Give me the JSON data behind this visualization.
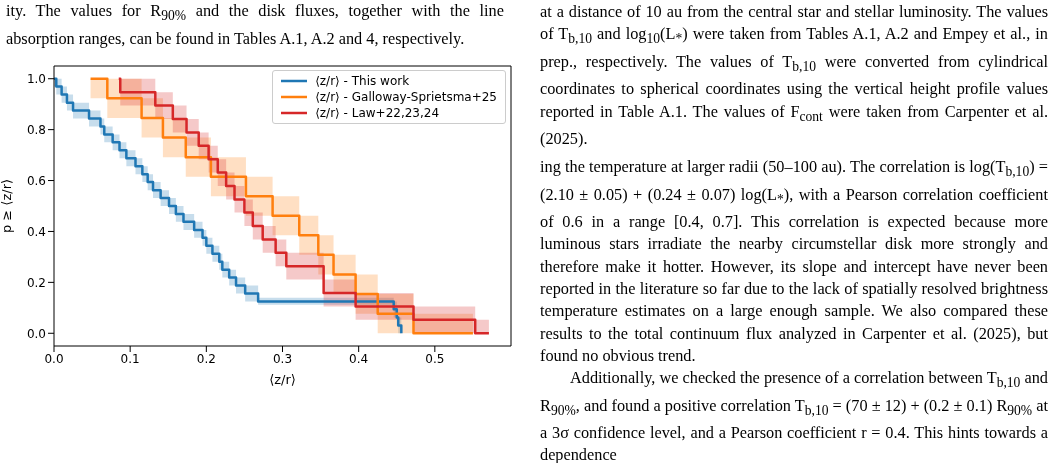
{
  "chart_data": {
    "type": "step",
    "xlabel": "⟨z/r⟩",
    "ylabel": "p ≥ ⟨z/r⟩",
    "xlim": [
      0,
      0.6
    ],
    "ylim": [
      -0.05,
      1.05
    ],
    "xticks": [
      {
        "value": 0,
        "label": "0.0"
      },
      {
        "value": 0.1,
        "label": "0.1"
      },
      {
        "value": 0.2,
        "label": "0.2"
      },
      {
        "value": 0.3,
        "label": "0.3"
      },
      {
        "value": 0.4,
        "label": "0.4"
      },
      {
        "value": 0.5,
        "label": "0.5"
      }
    ],
    "yticks": [
      {
        "value": 0,
        "label": "0.0"
      },
      {
        "value": 0.2,
        "label": "0.2"
      },
      {
        "value": 0.4,
        "label": "0.4"
      },
      {
        "value": 0.6,
        "label": "0.6"
      },
      {
        "value": 0.8,
        "label": "0.8"
      },
      {
        "value": 1,
        "label": "1.0"
      }
    ],
    "grid": false,
    "legend": "top right",
    "marker": "none",
    "line_style": "solid",
    "series": [
      {
        "name": "⟨z/r⟩ - This work",
        "color": "#1f77b4",
        "x": [
          0,
          0.003,
          0.01,
          0.017,
          0.025,
          0.046,
          0.061,
          0.066,
          0.077,
          0.086,
          0.095,
          0.107,
          0.116,
          0.123,
          0.13,
          0.14,
          0.151,
          0.16,
          0.17,
          0.184,
          0.195,
          0.2,
          0.208,
          0.217,
          0.221,
          0.23,
          0.239,
          0.251,
          0.268,
          0.446,
          0.45,
          0.452,
          0.456
        ],
        "values": [
          1.0,
          0.969,
          0.938,
          0.906,
          0.875,
          0.844,
          0.812,
          0.781,
          0.75,
          0.719,
          0.688,
          0.656,
          0.625,
          0.594,
          0.562,
          0.531,
          0.5,
          0.469,
          0.438,
          0.406,
          0.375,
          0.344,
          0.312,
          0.281,
          0.25,
          0.219,
          0.188,
          0.156,
          0.125,
          0.094,
          0.062,
          0.031,
          0.0
        ],
        "lower": [
          0.969,
          0.938,
          0.906,
          0.875,
          0.844,
          0.812,
          0.781,
          0.75,
          0.719,
          0.688,
          0.656,
          0.625,
          0.594,
          0.562,
          0.531,
          0.5,
          0.469,
          0.438,
          0.406,
          0.375,
          0.344,
          0.312,
          0.281,
          0.25,
          0.219,
          0.188,
          0.156,
          0.125,
          0.112,
          0.062,
          0.031,
          0.0,
          0.0
        ],
        "upper": [
          1.0,
          1.0,
          0.969,
          0.938,
          0.906,
          0.875,
          0.844,
          0.812,
          0.781,
          0.75,
          0.719,
          0.688,
          0.656,
          0.625,
          0.594,
          0.562,
          0.531,
          0.5,
          0.469,
          0.438,
          0.406,
          0.375,
          0.344,
          0.312,
          0.281,
          0.25,
          0.219,
          0.188,
          0.14,
          0.125,
          0.094,
          0.062,
          0.031
        ]
      },
      {
        "name": "⟨z/r⟩ - Galloway-Sprietsma+25",
        "color": "#ff7f0e",
        "x": [
          0.048,
          0.07,
          0.115,
          0.143,
          0.173,
          0.206,
          0.252,
          0.287,
          0.322,
          0.347,
          0.367,
          0.396,
          0.425,
          0.472,
          0.55
        ],
        "values": [
          1.0,
          0.923,
          0.846,
          0.769,
          0.692,
          0.615,
          0.538,
          0.462,
          0.385,
          0.308,
          0.231,
          0.154,
          0.077,
          0.0,
          0.0
        ],
        "lower": [
          0.923,
          0.846,
          0.769,
          0.692,
          0.615,
          0.538,
          0.462,
          0.385,
          0.308,
          0.231,
          0.154,
          0.077,
          0.0,
          0.0,
          0.0
        ],
        "upper": [
          1.0,
          1.0,
          0.923,
          0.846,
          0.769,
          0.692,
          0.615,
          0.538,
          0.462,
          0.385,
          0.308,
          0.231,
          0.154,
          0.077,
          0.077
        ]
      },
      {
        "name": "⟨z/r⟩ - Law+22,23,24",
        "color": "#d62728",
        "x": [
          0.085,
          0.087,
          0.133,
          0.156,
          0.174,
          0.19,
          0.203,
          0.215,
          0.226,
          0.237,
          0.25,
          0.261,
          0.274,
          0.291,
          0.305,
          0.354,
          0.396,
          0.472,
          0.553,
          0.571
        ],
        "values": [
          1.0,
          0.947,
          0.895,
          0.842,
          0.789,
          0.737,
          0.684,
          0.632,
          0.579,
          0.526,
          0.474,
          0.421,
          0.368,
          0.316,
          0.263,
          0.158,
          0.105,
          0.053,
          0.0,
          0.0
        ],
        "lower": [
          1.0,
          0.895,
          0.842,
          0.789,
          0.737,
          0.684,
          0.632,
          0.579,
          0.526,
          0.474,
          0.421,
          0.368,
          0.316,
          0.263,
          0.211,
          0.105,
          0.053,
          0.0,
          0.0,
          0.0
        ],
        "upper": [
          1.0,
          1.0,
          0.947,
          0.895,
          0.842,
          0.789,
          0.737,
          0.684,
          0.632,
          0.579,
          0.526,
          0.474,
          0.421,
          0.368,
          0.316,
          0.211,
          0.158,
          0.105,
          0.053,
          0.053
        ]
      }
    ],
    "annotations": [
      "ity. The values for R$_{90%}$ and the disk fluxes, together with the line absorption ranges, can be found in Tables A.1, A.2 and 4, respectively.",
      "at a distance of 10 au from the central star and stellar luminosity. The values of T$_{b,10}$ and log$_{10}$(L$_{*}$) were taken from Tables A.1, A.2 and Empey et al., in prep., respectively. The values of T$_{b,10}$ were converted from cylindrical coordinates to spherical coordinates using the vertical height profile values reported in Table A.1. The values of F$_{cont}$ were taken from Carpenter et al. (2025).",
      "ing the temperature at larger radii (50–100 au). The correlation is log(T$_{b,10}$) = (2.10 ± 0.05) + (0.24 ± 0.07) log(L$_{*}$), with a Pearson correlation coefficient of 0.6 in a range [0.4, 0.7]. This correlation is expected because more luminous stars irradiate the nearby circumstellar disk more strongly and therefore make it hotter. However, its slope and intercept have never been reported in the literature so far due to the lack of spatially resolved brightness temperature estimates on a large enough sample. We also compared these results to the total continuum flux analyzed in Carpenter et al. (2025), but found no obvious trend.",
      "Additionally, we checked the presence of a correlation between T$_{b,10}$ and R$_{90%}$, and found a positive correlation T$_{b,10}$ = (70 ± 12) + (0.2 ± 0.1) R$_{90%}$ at a 3σ confidence level, and a Pearson coefficient r = 0.4. This hints towards a dependence"
    ]
  }
}
